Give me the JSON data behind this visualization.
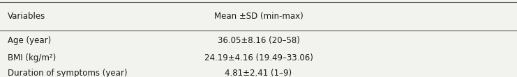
{
  "col1_header": "Variables",
  "col2_header": "Mean ±SD (min-max)",
  "rows": [
    [
      "Age (year)",
      "36.05±8.16 (20–58)"
    ],
    [
      "BMI (kg/m²)",
      "24.19±4.16 (19.49–33.06)"
    ],
    [
      "Duration of symptoms (year)",
      "4.81±2.41 (1–9)"
    ]
  ],
  "bg_color": "#f2f2ee",
  "text_color": "#1a1a1a",
  "fontsize": 8.5,
  "fig_width": 7.41,
  "fig_height": 1.11,
  "dpi": 100
}
